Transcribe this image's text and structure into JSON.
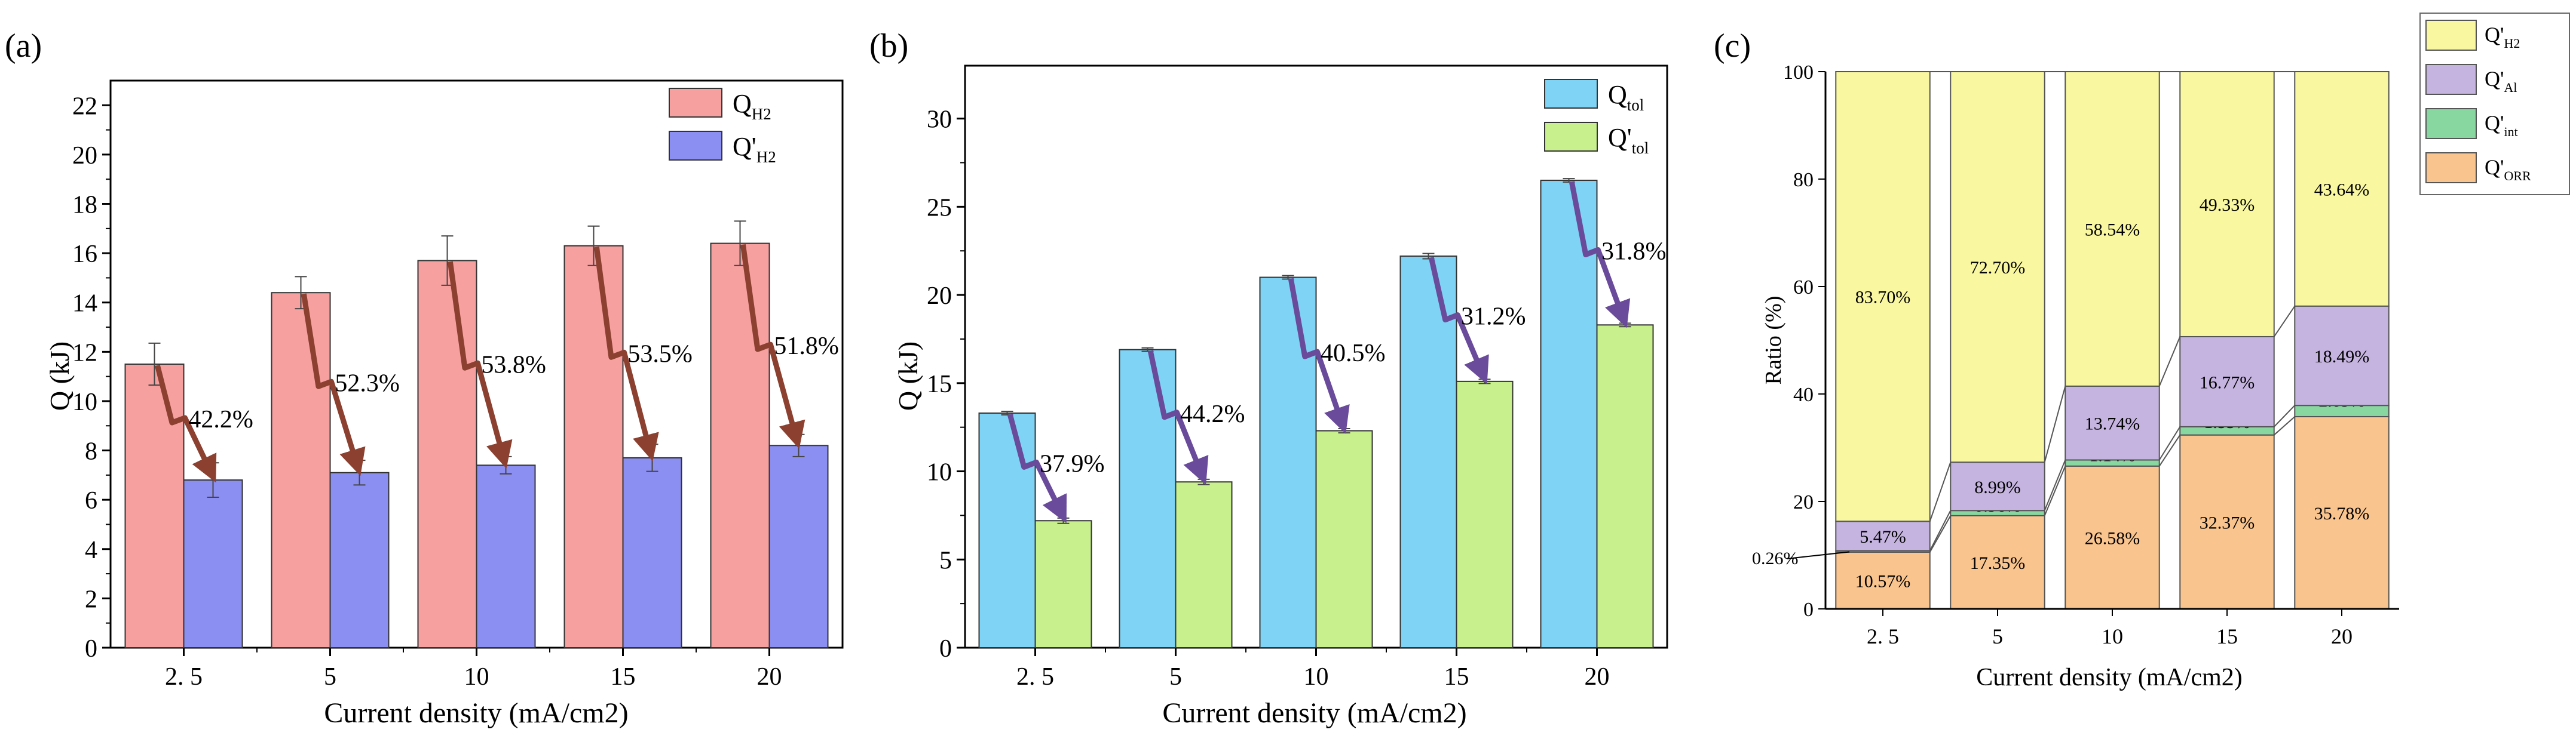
{
  "panel_a_label": "(a)",
  "panel_b_label": "(b)",
  "panel_c_label": "(c)",
  "legend_sub_h2": "H2",
  "legend_sub_tol": "tol",
  "legend_sub_al": "Al",
  "legend_sub_int": "int",
  "legend_sub_orr": "ORR",
  "chart_data": [
    {
      "panel": "(a)",
      "type": "bar",
      "title": "",
      "xlabel": "Current density (mA/cm2)",
      "ylabel": "Q (kJ)",
      "categories": [
        "2. 5",
        "5",
        "10",
        "15",
        "20"
      ],
      "ylim": [
        0,
        23
      ],
      "yticks": [
        0,
        2,
        4,
        6,
        8,
        10,
        12,
        14,
        16,
        18,
        20,
        22
      ],
      "series": [
        {
          "name": "Q_H2",
          "legend_main": "Q",
          "color": "#f7a0a0",
          "values": [
            11.5,
            14.4,
            15.7,
            16.3,
            16.4
          ],
          "errors": [
            0.85,
            0.65,
            1.0,
            0.8,
            0.9
          ]
        },
        {
          "name": "Q'_H2",
          "legend_main": "Q'",
          "color": "#8c8ff2",
          "values": [
            6.8,
            7.1,
            7.4,
            7.7,
            8.2
          ],
          "errors": [
            0.7,
            0.5,
            0.35,
            0.55,
            0.45
          ]
        }
      ],
      "annotations": [
        "42.2%",
        "52.3%",
        "53.8%",
        "53.5%",
        "51.8%"
      ],
      "annotation_color": "#8b4030",
      "legend_position": "top-right"
    },
    {
      "panel": "(b)",
      "type": "bar",
      "title": "",
      "xlabel": "Current density (mA/cm2)",
      "ylabel": "Q (kJ)",
      "categories": [
        "2. 5",
        "5",
        "10",
        "15",
        "20"
      ],
      "ylim": [
        0,
        33
      ],
      "yticks": [
        0,
        5,
        10,
        15,
        20,
        25,
        30
      ],
      "series": [
        {
          "name": "Q_tol",
          "legend_main": "Q",
          "color": "#7fd3f5",
          "values": [
            13.3,
            16.9,
            21.0,
            22.2,
            26.5
          ],
          "errors": [
            0.1,
            0.1,
            0.1,
            0.15,
            0.1
          ]
        },
        {
          "name": "Q'_tol",
          "legend_main": "Q'",
          "color": "#c8f08c",
          "values": [
            7.2,
            9.4,
            12.3,
            15.1,
            18.3
          ],
          "errors": [
            0.15,
            0.15,
            0.12,
            0.12,
            0.1
          ]
        }
      ],
      "annotations": [
        "37.9%",
        "44.2%",
        "40.5%",
        "31.2%",
        "31.8%"
      ],
      "annotation_color": "#6a4a9a",
      "legend_position": "top-right"
    },
    {
      "panel": "(c)",
      "type": "bar",
      "stacked": true,
      "title": "",
      "xlabel": "Current density (mA/cm2)",
      "ylabel": "Ratio (%)",
      "categories": [
        "2. 5",
        "5",
        "10",
        "15",
        "20"
      ],
      "ylim": [
        0,
        100
      ],
      "yticks": [
        0,
        20,
        40,
        60,
        80,
        100
      ],
      "series": [
        {
          "name": "Q'_ORR",
          "legend_main": "Q'",
          "color": "#f9c48d",
          "values": [
            10.57,
            17.35,
            26.58,
            32.37,
            35.78
          ],
          "labels": [
            "10.57%",
            "17.35%",
            "26.58%",
            "32.37%",
            "35.78%"
          ]
        },
        {
          "name": "Q'_int",
          "legend_main": "Q'",
          "color": "#88d6a0",
          "values": [
            0.26,
            0.96,
            1.14,
            1.53,
            2.09
          ],
          "labels": [
            "",
            "0.96%",
            "1.14%",
            "1.53%",
            "2.09%"
          ]
        },
        {
          "name": "Q'_Al",
          "legend_main": "Q'",
          "color": "#c5b4e0",
          "values": [
            5.47,
            8.99,
            13.74,
            16.77,
            18.49
          ],
          "labels": [
            "5.47%",
            "8.99%",
            "13.74%",
            "16.77%",
            "18.49%"
          ]
        },
        {
          "name": "Q'_H2",
          "legend_main": "Q'",
          "color": "#f9f7a0",
          "values": [
            83.7,
            72.7,
            58.54,
            49.33,
            43.64
          ],
          "labels": [
            "83.70%",
            "72.70%",
            "58.54%",
            "49.33%",
            "43.64%"
          ]
        }
      ],
      "side_annotation": "0.26%",
      "legend_order": [
        "Q'_H2",
        "Q'_Al",
        "Q'_int",
        "Q'_ORR"
      ],
      "legend_position": "top-right"
    }
  ]
}
